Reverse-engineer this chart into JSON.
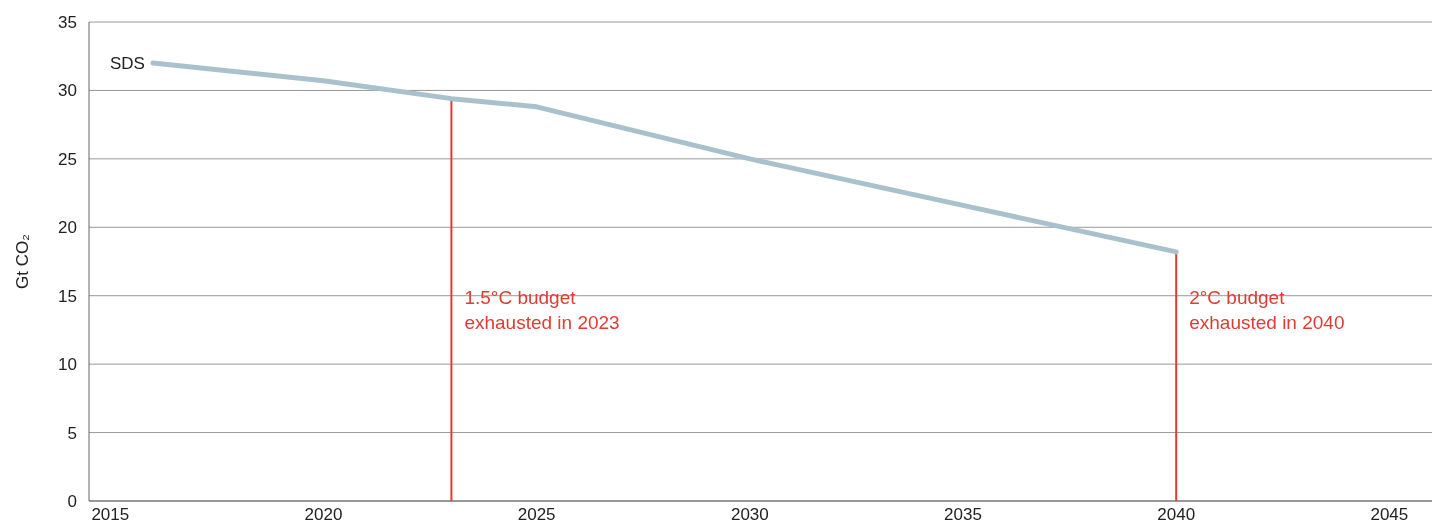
{
  "chart_data": {
    "type": "line",
    "ylabel": "Gt CO₂",
    "x": [
      2016,
      2020,
      2023,
      2025,
      2030,
      2035,
      2040
    ],
    "series": [
      {
        "name": "SDS",
        "color": "#a9c1cc",
        "values": [
          32.0,
          30.7,
          29.4,
          28.8,
          25.0,
          21.6,
          18.2
        ]
      }
    ],
    "xlim": [
      2014.5,
      2046
    ],
    "xticks": [
      2015,
      2020,
      2025,
      2030,
      2035,
      2040,
      2045
    ],
    "ylim": [
      0,
      35
    ],
    "yticks": [
      0,
      5,
      10,
      15,
      20,
      25,
      30,
      35
    ],
    "grid": "y",
    "marker": "none",
    "line_style": "solid",
    "ref_lines": [
      {
        "axis": "x",
        "value": 2023,
        "label": "1.5°C budget\nexhausted in 2023",
        "color": "#e03c31"
      },
      {
        "axis": "x",
        "value": 2040,
        "label": "2°C budget\nexhausted in 2040",
        "color": "#e03c31"
      }
    ]
  }
}
